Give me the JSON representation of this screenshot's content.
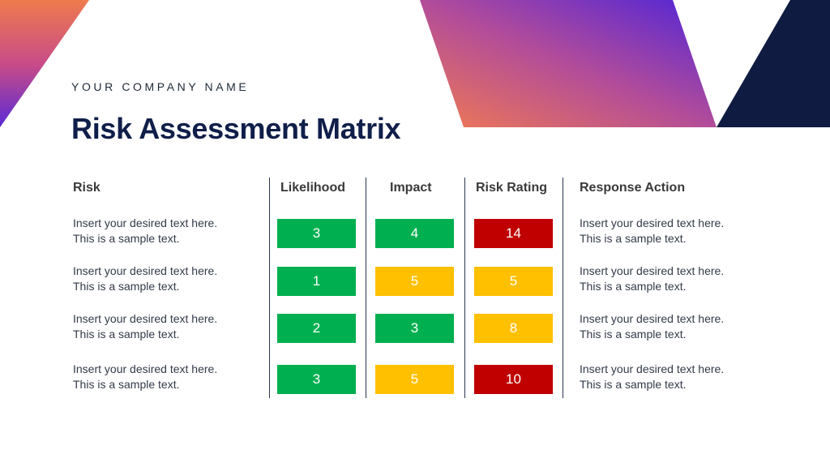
{
  "colors": {
    "navy": "#101e4a",
    "green": "#00b050",
    "yellow": "#ffc000",
    "red": "#c00000"
  },
  "header": {
    "company": "YOUR COMPANY NAME",
    "title": "Risk Assessment Matrix"
  },
  "table": {
    "columns": [
      "Risk",
      "Likelihood",
      "Impact",
      "Risk Rating",
      "Response Action"
    ],
    "rows": [
      {
        "risk_line1": "Insert your desired text here.",
        "risk_line2": "This is a sample text.",
        "likelihood": "3",
        "likelihood_level": "green",
        "impact": "4",
        "impact_level": "green",
        "rating": "14",
        "rating_level": "red",
        "response_line1": "Insert your desired text here.",
        "response_line2": "This is a sample text."
      },
      {
        "risk_line1": "Insert your desired text here.",
        "risk_line2": "This is a sample text.",
        "likelihood": "1",
        "likelihood_level": "green",
        "impact": "5",
        "impact_level": "yellow",
        "rating": "5",
        "rating_level": "yellow",
        "response_line1": "Insert your desired text here.",
        "response_line2": "This is a sample text."
      },
      {
        "risk_line1": "Insert your desired text here.",
        "risk_line2": "This is a sample text.",
        "likelihood": "2",
        "likelihood_level": "green",
        "impact": "3",
        "impact_level": "green",
        "rating": "8",
        "rating_level": "yellow",
        "response_line1": "Insert your desired text here.",
        "response_line2": "This is a sample text."
      },
      {
        "risk_line1": "Insert your desired text here.",
        "risk_line2": "This is a sample text.",
        "likelihood": "3",
        "likelihood_level": "green",
        "impact": "5",
        "impact_level": "yellow",
        "rating": "10",
        "rating_level": "red",
        "response_line1": "Insert your desired text here.",
        "response_line2": "This is a sample text."
      }
    ]
  }
}
